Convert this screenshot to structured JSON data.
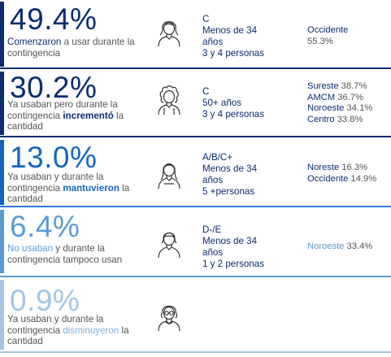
{
  "colors": {
    "dark_blue": "#0a2d72",
    "mid_blue": "#1565c0",
    "light_blue": "#5b9bd5",
    "pale_blue": "#a3c5e8",
    "divider": "#2e7bd6"
  },
  "chart_data": {
    "type": "table",
    "rows": [
      {
        "percent": "49.4%",
        "value": 49.4,
        "desc_plain_before": "",
        "desc_highlight": "Comenzaron",
        "desc_plain_after": " a usar durante la contingencia",
        "icon": "woman-icon",
        "demographics": [
          "C",
          "Menos de 34",
          "años",
          "3 y 4 personas"
        ],
        "regions": [
          {
            "name": "Occidente",
            "value": ""
          },
          {
            "name": "",
            "value": "55.3%"
          }
        ]
      },
      {
        "percent": "30.2%",
        "value": 30.2,
        "desc_plain_before": "Ya usaban pero durante la contingencia ",
        "desc_highlight": "incrementó",
        "desc_plain_after": " la cantidad",
        "icon": "curly-hair-woman-icon",
        "demographics": [
          "C",
          "50+ años",
          "3 y 4 personas"
        ],
        "regions": [
          {
            "name": "Sureste",
            "value": "38.7%"
          },
          {
            "name": "AMCM",
            "value": "36.7%"
          },
          {
            "name": "Noroeste",
            "value": "34.1%"
          },
          {
            "name": "Centro",
            "value": "33.8%"
          }
        ]
      },
      {
        "percent": "13.0%",
        "value": 13.0,
        "desc_plain_before": "Ya usaban y durante la contingencia ",
        "desc_highlight": "mantuvieron",
        "desc_plain_after": " la cantidad",
        "icon": "long-hair-woman-icon",
        "demographics": [
          "A/B/C+",
          "Menos de 34",
          "años",
          "5 +personas"
        ],
        "regions": [
          {
            "name": "Noreste",
            "value": "16.3%"
          },
          {
            "name": "Occidente",
            "value": "14.9%"
          }
        ]
      },
      {
        "percent": "6.4%",
        "value": 6.4,
        "desc_plain_before": "",
        "desc_highlight": "No usaban",
        "desc_plain_after": "  y durante la contingencia tampoco usan",
        "icon": "short-hair-woman-icon",
        "demographics": [
          "D-/E",
          "Menos de 34",
          "años",
          "1 y 2 personas"
        ],
        "regions": [
          {
            "name": "Noroeste",
            "value": "33.4%"
          }
        ]
      },
      {
        "percent": "0.9%",
        "value": 0.9,
        "desc_plain_before": "Ya usaban y durante la contingencia ",
        "desc_highlight": "disminuyeron",
        "desc_plain_after": " la cantidad",
        "icon": "elderly-woman-glasses-icon",
        "demographics": [],
        "regions": []
      }
    ]
  }
}
